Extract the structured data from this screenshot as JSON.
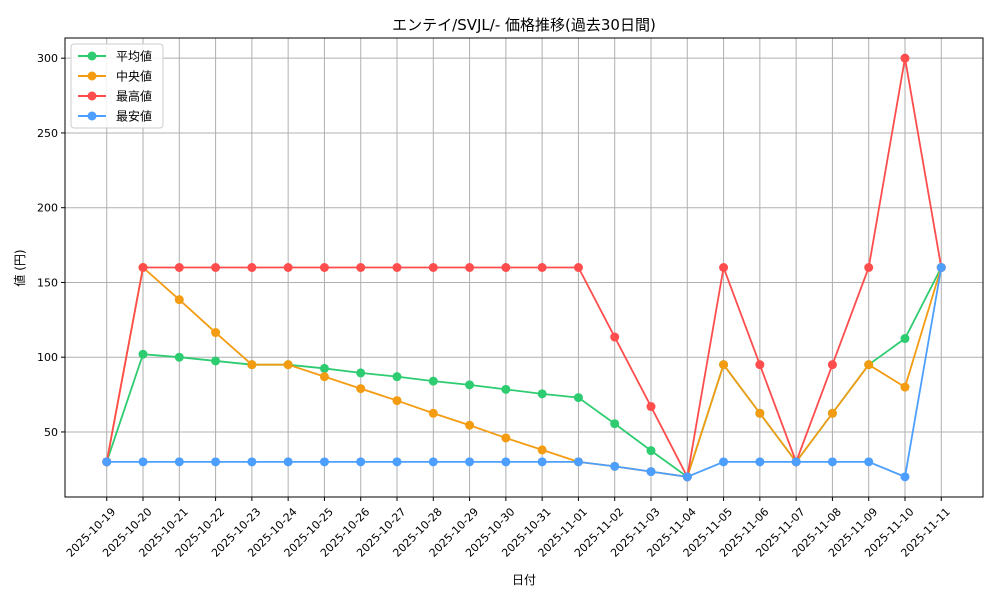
{
  "chart_data": {
    "type": "line",
    "title": "エンテイ/SVJL/- 価格推移(過去30日間)",
    "xlabel": "日付",
    "ylabel": "値 (円)",
    "ylim": [
      6.5,
      313.5
    ],
    "yticks": [
      50,
      100,
      150,
      200,
      250,
      300
    ],
    "grid": true,
    "legend_position": "top-left",
    "categories": [
      "2025-10-19",
      "2025-10-20",
      "2025-10-21",
      "2025-10-22",
      "2025-10-23",
      "2025-10-24",
      "2025-10-25",
      "2025-10-26",
      "2025-10-27",
      "2025-10-28",
      "2025-10-29",
      "2025-10-30",
      "2025-10-31",
      "2025-11-01",
      "2025-11-02",
      "2025-11-03",
      "2025-11-04",
      "2025-11-05",
      "2025-11-06",
      "2025-11-07",
      "2025-11-08",
      "2025-11-09",
      "2025-11-10",
      "2025-11-11"
    ],
    "series": [
      {
        "name": "平均値",
        "color": "#2ecc71",
        "values": [
          30,
          102,
          100,
          97.5,
          95,
          95,
          92.5,
          89.5,
          87,
          84,
          81.5,
          78.5,
          75.5,
          73,
          55.5,
          37.5,
          20,
          95,
          62.5,
          30,
          62.5,
          95,
          112.5,
          160
        ]
      },
      {
        "name": "中央値",
        "color": "#f39c12",
        "values": [
          30,
          160,
          138.5,
          116.5,
          95,
          95,
          87,
          79,
          71,
          62.5,
          54.5,
          46,
          38,
          30,
          27,
          23.5,
          20,
          95,
          62.5,
          30,
          62.5,
          95,
          80,
          160
        ]
      },
      {
        "name": "最高値",
        "color": "#ff4d4d",
        "values": [
          30,
          160,
          160,
          160,
          160,
          160,
          160,
          160,
          160,
          160,
          160,
          160,
          160,
          160,
          113.5,
          67,
          20,
          160,
          95,
          30,
          95,
          160,
          300,
          160
        ]
      },
      {
        "name": "最安値",
        "color": "#4d9fff",
        "values": [
          30,
          30,
          30,
          30,
          30,
          30,
          30,
          30,
          30,
          30,
          30,
          30,
          30,
          30,
          27,
          23.5,
          20,
          30,
          30,
          30,
          30,
          30,
          20,
          160
        ]
      }
    ]
  }
}
